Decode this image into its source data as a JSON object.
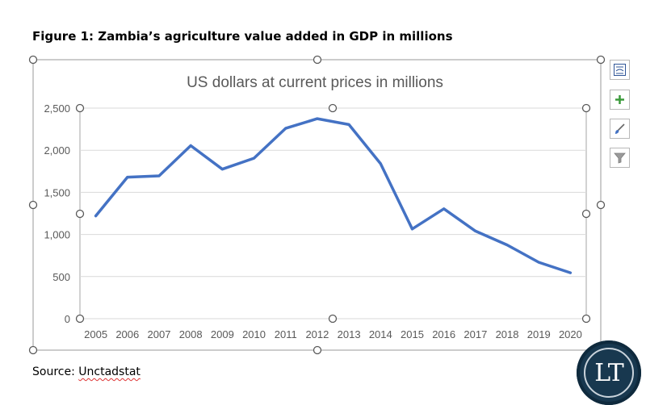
{
  "figure_title": "Figure 1: Zambia’s agriculture value added in GDP in millions",
  "source_prefix": "Source: ",
  "source_name": "Unctadstat",
  "logo_text": "LT",
  "side_buttons": [
    {
      "name": "chart-layout-icon"
    },
    {
      "name": "chart-elements-plus-icon"
    },
    {
      "name": "chart-styles-brush-icon"
    },
    {
      "name": "chart-filter-icon"
    }
  ],
  "colors": {
    "series": "#4472c4",
    "grid": "#d9d9d9",
    "axis_text": "#595959",
    "logo": "#18384f"
  },
  "chart_data": {
    "type": "line",
    "title": "US dollars at current prices in millions",
    "xlabel": "",
    "ylabel": "",
    "x": [
      "2005",
      "2006",
      "2007",
      "2008",
      "2009",
      "2010",
      "2011",
      "2012",
      "2013",
      "2014",
      "2015",
      "2016",
      "2017",
      "2018",
      "2019",
      "2020"
    ],
    "series": [
      {
        "values": [
          1220,
          1680,
          1695,
          2055,
          1775,
          1905,
          2260,
          2375,
          2305,
          1840,
          1065,
          1305,
          1040,
          875,
          670,
          545
        ]
      }
    ],
    "ylim": [
      0,
      2500
    ],
    "yticks": [
      0,
      500,
      1000,
      1500,
      2000,
      2500
    ],
    "ytick_labels": [
      "0",
      "500",
      "1,000",
      "1,500",
      "2,000",
      "2,500"
    ],
    "grid": true,
    "legend": "none"
  }
}
